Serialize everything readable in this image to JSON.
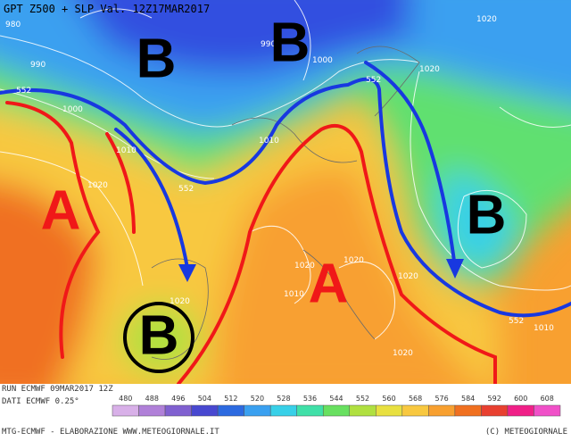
{
  "header": {
    "title": "GPT Z500 + SLP Val. 12Z17MAR2017"
  },
  "map": {
    "systems": [
      "B",
      "B",
      "B",
      "A",
      "A",
      "B"
    ],
    "isobar_labels": [
      "980",
      "990",
      "990",
      "1000",
      "1000",
      "1010",
      "1010",
      "1020",
      "1020",
      "1020",
      "1020",
      "1020",
      "1020",
      "1010",
      "1010",
      "552",
      "552",
      "552",
      "552",
      "1020",
      "1020"
    ]
  },
  "footer": {
    "run": "RUN ECMWF 09MAR2017 12Z",
    "source": "DATI ECMWF 0.25°",
    "credits": "MTG-ECMWF - ELABORAZIONE WWW.METEOGIORNALE.IT",
    "copyright": "(C) METEOGIORNALE"
  },
  "colorbar": {
    "labels": [
      "480",
      "488",
      "496",
      "504",
      "512",
      "520",
      "528",
      "536",
      "544",
      "552",
      "560",
      "568",
      "576",
      "584",
      "592",
      "600",
      "608"
    ],
    "colors": [
      "#d8b0e8",
      "#b080d8",
      "#8060d0",
      "#4848d0",
      "#2c6ae0",
      "#3aa0f0",
      "#38d0e8",
      "#40e0a8",
      "#68e060",
      "#b0e040",
      "#e8e040",
      "#f8c840",
      "#f8a030",
      "#f07020",
      "#e84030",
      "#f02088",
      "#f050c8"
    ]
  }
}
